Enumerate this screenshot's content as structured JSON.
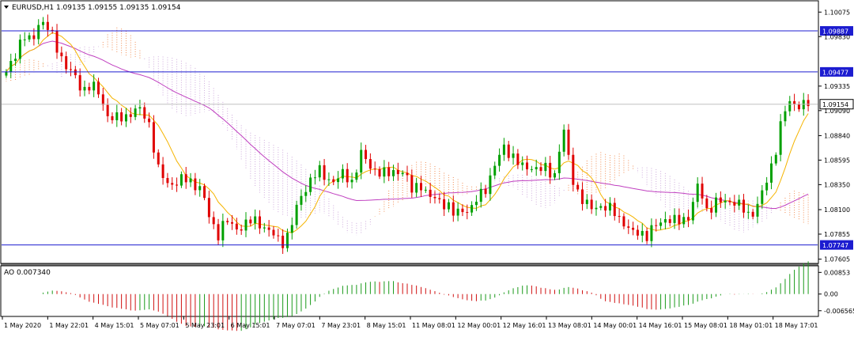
{
  "header": {
    "symbol_title": "EURUSD,H1  1.09135 1.09155 1.09135 1.09154"
  },
  "ao_panel": {
    "label": "AO 0.007340"
  },
  "colors": {
    "bull": "#00a000",
    "bear": "#e00000",
    "ma_fast": "#f5b400",
    "ma_slow": "#c040c0",
    "cloud_a": "#f08040",
    "cloud_b": "#c8a0d8",
    "level": "#1c1cd0",
    "price_tag_bg": "#ffffff",
    "ao_up": "#1a9a1a",
    "ao_down": "#d01010"
  },
  "chart_data": [
    {
      "type": "candlestick",
      "title": "EURUSD,H1",
      "ohlc_header": [
        "1.09135",
        "1.09155",
        "1.09135",
        "1.09154"
      ],
      "y_ticks": [
        "1.10075",
        "1.09830",
        "1.09335",
        "1.09090",
        "1.08840",
        "1.08595",
        "1.08350",
        "1.08100",
        "1.07855",
        "1.07605"
      ],
      "ylim": [
        1.0757,
        1.1018
      ],
      "x_labels": [
        "1 May 2020",
        "1 May 22:01",
        "4 May 15:01",
        "5 May 07:01",
        "5 May 23:01",
        "6 May 15:01",
        "7 May 07:01",
        "7 May 23:01",
        "8 May 15:01",
        "11 May 08:01",
        "12 May 00:01",
        "12 May 16:01",
        "13 May 08:01",
        "14 May 00:01",
        "14 May 16:01",
        "15 May 08:01",
        "18 May 01:01",
        "18 May 17:01"
      ],
      "horizontal_levels": [
        {
          "price": 1.09887,
          "label": "1.09887"
        },
        {
          "price": 1.09477,
          "label": "1.09477"
        },
        {
          "price": 1.07747,
          "label": "1.07747"
        }
      ],
      "current_price": {
        "price": 1.09154,
        "label": "1.09154"
      },
      "close_path": [
        1.0945,
        1.0965,
        1.0985,
        1.0975,
        1.1002,
        1.099,
        1.0972,
        1.0955,
        1.0943,
        1.093,
        1.0935,
        1.0925,
        1.0905,
        1.09,
        1.0902,
        1.091,
        1.0908,
        1.0895,
        1.085,
        1.0835,
        1.0838,
        1.084,
        1.0837,
        1.0833,
        1.0803,
        1.0785,
        1.08,
        1.079,
        1.0795,
        1.0798,
        1.0797,
        1.079,
        1.078,
        1.0778,
        1.08,
        1.0825,
        1.084,
        1.0848,
        1.0842,
        1.0838,
        1.0846,
        1.0838,
        1.0865,
        1.0855,
        1.0848,
        1.0844,
        1.085,
        1.0847,
        1.083,
        1.0838,
        1.082,
        1.0823,
        1.0815,
        1.0805,
        1.0812,
        1.0807,
        1.0825,
        1.0835,
        1.0855,
        1.0875,
        1.0862,
        1.0852,
        1.0855,
        1.0848,
        1.0852,
        1.0845,
        1.089,
        1.0845,
        1.082,
        1.0812,
        1.0815,
        1.081,
        1.081,
        1.0798,
        1.0785,
        1.079,
        1.0782,
        1.0795,
        1.0802,
        1.0797,
        1.08,
        1.0805,
        1.0835,
        1.081,
        1.0816,
        1.0818,
        1.082,
        1.0812,
        1.0804,
        1.0815,
        1.0835,
        1.0865,
        1.0905,
        1.0918,
        1.0915,
        1.0915
      ],
      "ao": {
        "ylim": [
          -0.0085,
          0.0105
        ],
        "y_ticks": [
          "0.00853",
          "0.00",
          "-0.006565"
        ],
        "current": 0.00734
      }
    }
  ]
}
